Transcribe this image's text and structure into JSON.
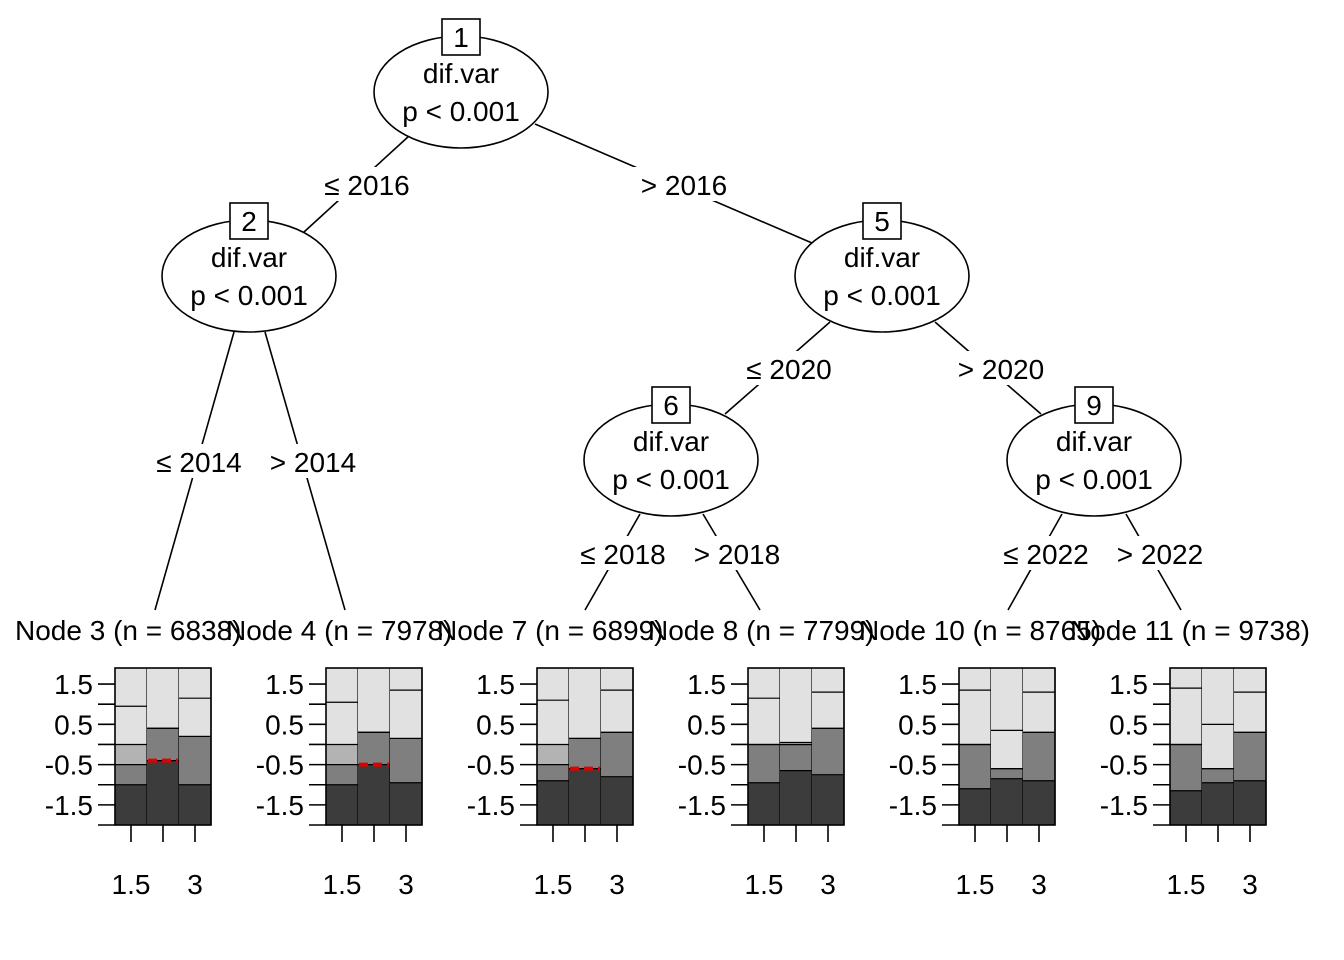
{
  "tree": {
    "inner": [
      {
        "id": "1",
        "var": "dif.var",
        "p": "p < 0.001"
      },
      {
        "id": "2",
        "var": "dif.var",
        "p": "p < 0.001"
      },
      {
        "id": "5",
        "var": "dif.var",
        "p": "p < 0.001"
      },
      {
        "id": "6",
        "var": "dif.var",
        "p": "p < 0.001"
      },
      {
        "id": "9",
        "var": "dif.var",
        "p": "p < 0.001"
      }
    ],
    "edges": [
      {
        "from": "1",
        "to": "2",
        "label": "≤ 2016"
      },
      {
        "from": "1",
        "to": "5",
        "label": "> 2016"
      },
      {
        "from": "2",
        "to": "3",
        "label": "≤ 2014"
      },
      {
        "from": "2",
        "to": "4",
        "label": "> 2014"
      },
      {
        "from": "5",
        "to": "6",
        "label": "≤ 2020"
      },
      {
        "from": "5",
        "to": "9",
        "label": "> 2020"
      },
      {
        "from": "6",
        "to": "7",
        "label": "≤ 2018"
      },
      {
        "from": "6",
        "to": "8",
        "label": "> 2018"
      },
      {
        "from": "9",
        "to": "10",
        "label": "≤ 2022"
      },
      {
        "from": "9",
        "to": "11",
        "label": "> 2022"
      }
    ],
    "leaves": [
      {
        "id": "3",
        "title": "Node 3 (n = 6838)",
        "medians": [
          null,
          -0.4,
          null
        ],
        "cuts": [
          [
            -1.0,
            -0.5,
            0.0,
            0.95
          ],
          [
            -0.4,
            0.4,
            0.4,
            0.4
          ],
          [
            -1.0,
            0.2,
            0.2,
            1.15
          ]
        ]
      },
      {
        "id": "4",
        "title": "Node 4 (n = 7978)",
        "medians": [
          null,
          -0.5,
          null
        ],
        "cuts": [
          [
            -1.0,
            -0.5,
            0.0,
            1.05
          ],
          [
            -0.5,
            0.3,
            0.3,
            0.3
          ],
          [
            -0.95,
            0.15,
            0.15,
            1.35
          ]
        ]
      },
      {
        "id": "7",
        "title": "Node 7 (n = 6899)",
        "medians": [
          null,
          -0.6,
          null
        ],
        "cuts": [
          [
            -0.9,
            -0.5,
            0.0,
            1.1
          ],
          [
            -0.6,
            0.15,
            0.15,
            0.15
          ],
          [
            -0.8,
            0.3,
            0.3,
            1.35
          ]
        ]
      },
      {
        "id": "8",
        "title": "Node 8 (n = 7799)",
        "medians": [
          null,
          null,
          null
        ],
        "cuts": [
          [
            -0.95,
            0.0,
            0.0,
            1.15
          ],
          [
            -0.65,
            0.0,
            0.0,
            0.05
          ],
          [
            -0.75,
            0.4,
            0.4,
            1.3
          ]
        ]
      },
      {
        "id": "10",
        "title": "Node 10 (n = 8765)",
        "medians": [
          null,
          null,
          null
        ],
        "cuts": [
          [
            -1.1,
            0.0,
            0.0,
            1.35
          ],
          [
            -0.85,
            -0.6,
            -0.6,
            0.35
          ],
          [
            -0.9,
            0.3,
            0.3,
            1.3
          ]
        ]
      },
      {
        "id": "11",
        "title": "Node 11 (n = 9738)",
        "medians": [
          null,
          null,
          null
        ],
        "cuts": [
          [
            -1.15,
            0.0,
            0.0,
            1.4
          ],
          [
            -0.95,
            -0.6,
            -0.6,
            0.5
          ],
          [
            -0.9,
            0.3,
            0.3,
            1.3
          ]
        ]
      }
    ]
  },
  "panel_axis": {
    "ylim": [
      -2.0,
      1.9
    ],
    "y_ticks": [
      -2.0,
      -1.5,
      -1.0,
      -0.5,
      0.0,
      0.5,
      1.0,
      1.5,
      2.0
    ],
    "y_tick_labels": [
      "-1.5",
      "-0.5",
      "0.5",
      "1.5"
    ],
    "x_ticks": [
      1,
      2,
      3
    ],
    "x_tick_labels": [
      "1.5",
      "3"
    ]
  },
  "colors": {
    "bands": [
      "#3c3c3c",
      "#7f7f7f",
      "#b3b3b3",
      "#e1e1e1"
    ],
    "median": "#e00000"
  }
}
